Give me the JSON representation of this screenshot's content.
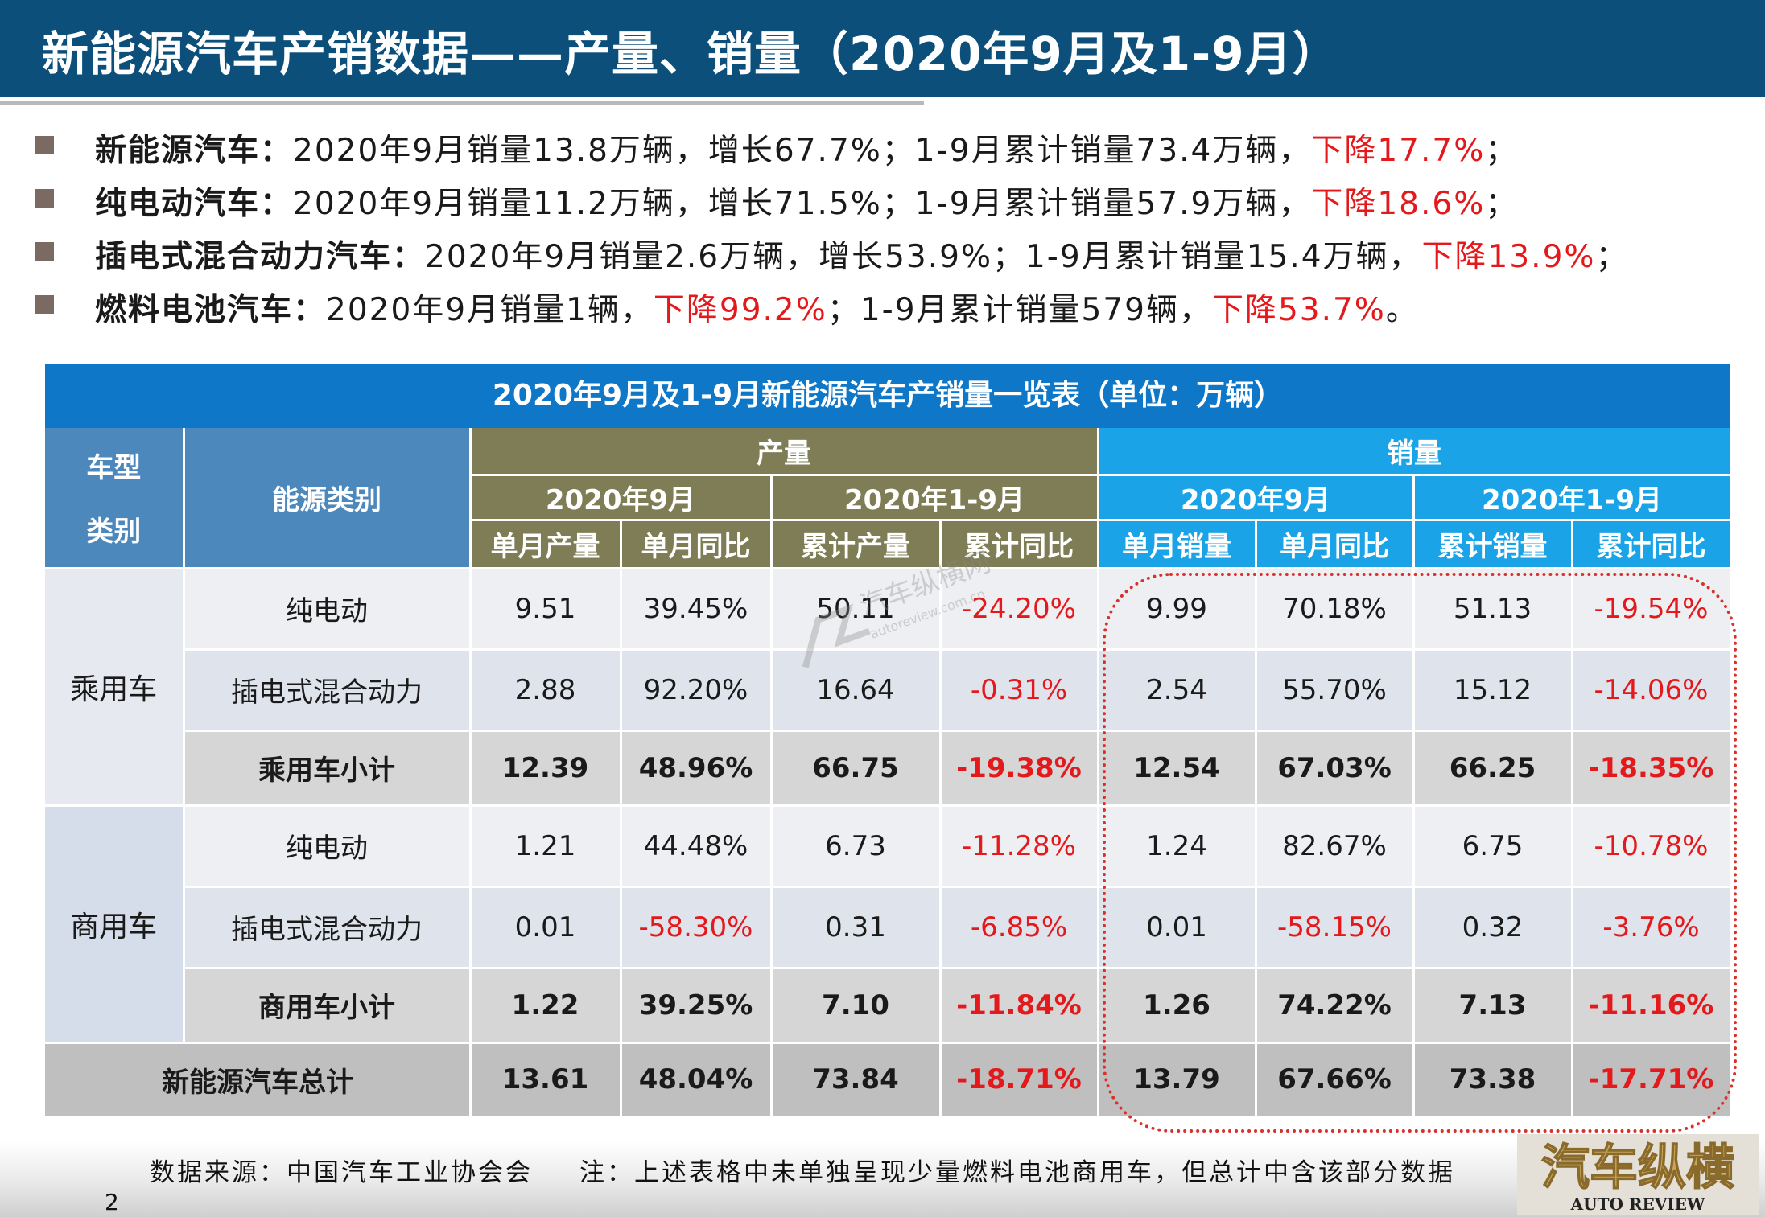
{
  "title": "新能源汽车产销数据——产量、销量（2020年9月及1-9月）",
  "bullets": [
    {
      "label": "新能源汽车：",
      "text": "2020年9月销量13.8万辆，增长67.7%；1-9月累计销量73.4万辆，",
      "red": "下降17.7%",
      "tail": "；"
    },
    {
      "label": "纯电动汽车：",
      "text": "2020年9月销量11.2万辆，增长71.5%；1-9月累计销量57.9万辆，",
      "red": "下降18.6%",
      "tail": "；"
    },
    {
      "label": "插电式混合动力汽车：",
      "text": "2020年9月销量2.6万辆，增长53.9%；1-9月累计销量15.4万辆，",
      "red": "下降13.9%",
      "tail": "；"
    },
    {
      "label": "燃料电池汽车：",
      "text": "2020年9月销量1辆，",
      "red": "下降99.2%",
      "text2": "；1-9月累计销量579辆，",
      "red2": "下降53.7%",
      "tail": "。"
    }
  ],
  "table": {
    "title": "2020年9月及1-9月新能源汽车产销量一览表（单位：万辆）",
    "header": {
      "vehicle_type_1": "车型",
      "vehicle_type_2": "类别",
      "energy_type": "能源类别",
      "production": "产量",
      "sales": "销量",
      "period_month": "2020年9月",
      "period_ytd": "2020年1-9月",
      "prod_cols": [
        "单月产量",
        "单月同比",
        "累计产量",
        "累计同比"
      ],
      "sales_cols": [
        "单月销量",
        "单月同比",
        "累计销量",
        "累计同比"
      ]
    },
    "groups": [
      {
        "name": "乘用车",
        "rows": [
          {
            "energy": "纯电动",
            "values": [
              "9.51",
              "39.45%",
              "50.11",
              "-24.20%",
              "9.99",
              "70.18%",
              "51.13",
              "-19.54%"
            ]
          },
          {
            "energy": "插电式混合动力",
            "values": [
              "2.88",
              "92.20%",
              "16.64",
              "-0.31%",
              "2.54",
              "55.70%",
              "15.12",
              "-14.06%"
            ]
          },
          {
            "energy": "乘用车小计",
            "values": [
              "12.39",
              "48.96%",
              "66.75",
              "-19.38%",
              "12.54",
              "67.03%",
              "66.25",
              "-18.35%"
            ]
          }
        ]
      },
      {
        "name": "商用车",
        "rows": [
          {
            "energy": "纯电动",
            "values": [
              "1.21",
              "44.48%",
              "6.73",
              "-11.28%",
              "1.24",
              "82.67%",
              "6.75",
              "-10.78%"
            ]
          },
          {
            "energy": "插电式混合动力",
            "values": [
              "0.01",
              "-58.30%",
              "0.31",
              "-6.85%",
              "0.01",
              "-58.15%",
              "0.32",
              "-3.76%"
            ]
          },
          {
            "energy": "商用车小计",
            "values": [
              "1.22",
              "39.25%",
              "7.10",
              "-11.84%",
              "1.26",
              "74.22%",
              "7.13",
              "-11.16%"
            ]
          }
        ]
      }
    ],
    "total": {
      "label": "新能源汽车总计",
      "values": [
        "13.61",
        "48.04%",
        "73.84",
        "-18.71%",
        "13.79",
        "67.66%",
        "73.38",
        "-17.71%"
      ]
    }
  },
  "footer": {
    "source": "数据来源：中国汽车工业协会会",
    "note": "注：上述表格中未单独呈现少量燃料电池商用车，但总计中含该部分数据",
    "page": "2"
  },
  "logo": {
    "cn": "汽车纵横",
    "en": "AUTO REVIEW"
  },
  "watermark": {
    "cn": "汽车纵横网",
    "en": "autoreview.com.cn"
  },
  "colors": {
    "title_bg": "#0b4f7a",
    "table_title_bg": "#0e77c8",
    "production_header": "#7e7d55",
    "sales_header": "#1aa3e6",
    "negative": "#e3191b",
    "highlight_oval": "#d9302a"
  }
}
